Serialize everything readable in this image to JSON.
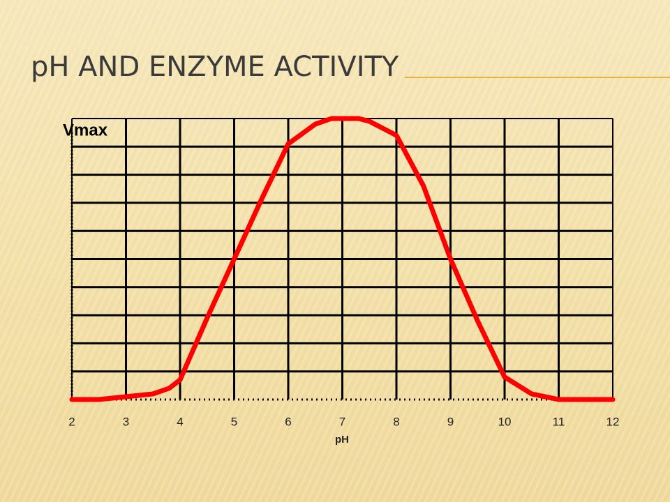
{
  "chart_data": {
    "type": "line",
    "title": "pH AND ENZYME ACTIVITY",
    "xlabel": "pH",
    "x": [
      2,
      2.5,
      3,
      3.5,
      3.8,
      4,
      4.5,
      5,
      5.5,
      6,
      6.5,
      6.8,
      7,
      7.3,
      7.5,
      8,
      8.5,
      9,
      9.5,
      10,
      10.5,
      11,
      11.5,
      12
    ],
    "series": [
      {
        "name": "activity",
        "color": "#ff0000",
        "values": [
          0,
          0,
          0.01,
          0.02,
          0.04,
          0.07,
          0.29,
          0.5,
          0.71,
          0.91,
          0.98,
          1,
          1,
          1,
          0.99,
          0.94,
          0.76,
          0.5,
          0.28,
          0.08,
          0.02,
          0,
          0,
          0
        ]
      }
    ],
    "xlim": [
      2,
      12
    ],
    "xticks": [
      2,
      3,
      4,
      5,
      6,
      7,
      8,
      9,
      10,
      11,
      12
    ],
    "ylim": [
      0,
      1
    ],
    "yticks": [
      {
        "value": 1,
        "label": "Vmax"
      }
    ],
    "grid": true
  }
}
